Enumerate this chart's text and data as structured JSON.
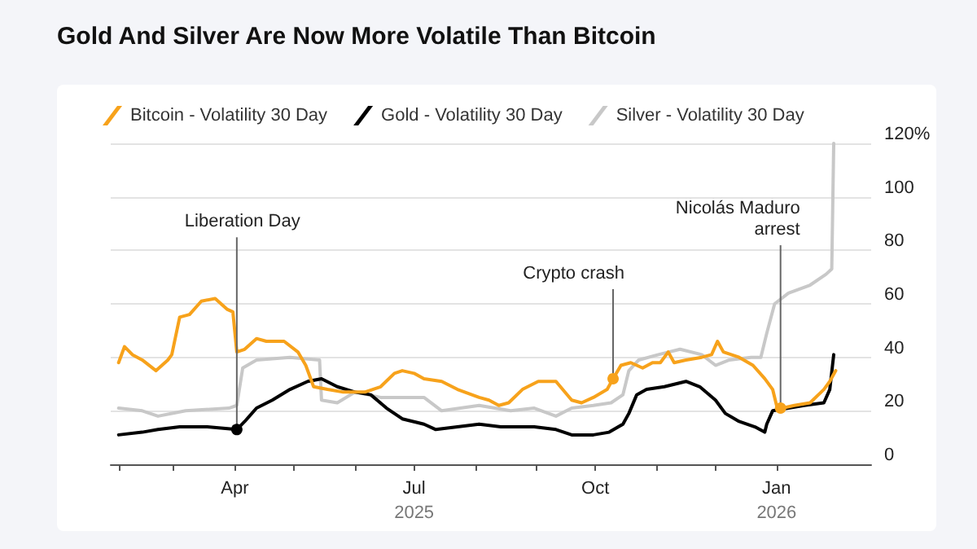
{
  "chart_data": {
    "type": "line",
    "title": "Gold And Silver Are Now More Volatile Than Bitcoin",
    "xlim": [
      "2025-01-28",
      "2026-02-18"
    ],
    "xticks": [
      {
        "value": "2025-02-01",
        "label": null
      },
      {
        "value": "2025-03-01",
        "label": null
      },
      {
        "value": "2025-04-01",
        "label": "Apr"
      },
      {
        "value": "2025-05-01",
        "label": null
      },
      {
        "value": "2025-06-01",
        "label": null
      },
      {
        "value": "2025-07-01",
        "label": "Jul\n2025"
      },
      {
        "value": "2025-08-01",
        "label": null
      },
      {
        "value": "2025-09-01",
        "label": null
      },
      {
        "value": "2025-10-01",
        "label": "Oct"
      },
      {
        "value": "2025-11-01",
        "label": null
      },
      {
        "value": "2025-12-01",
        "label": null
      },
      {
        "value": "2026-01-01",
        "label": "Jan\n2026"
      }
    ],
    "ylim": [
      0,
      120
    ],
    "yticks": [
      0,
      20,
      40,
      60,
      80,
      100,
      {
        "value": 120,
        "label": "120%"
      }
    ],
    "grid": "y",
    "legend": "top left",
    "marker": "none",
    "line_style": "solid",
    "series": [
      {
        "name": "Bitcoin - Volatility 30 Day",
        "color": "#f7a21b",
        "x": [
          "2025-02-01",
          "2025-02-04",
          "2025-02-08",
          "2025-02-13",
          "2025-02-20",
          "2025-02-26",
          "2025-02-28",
          "2025-03-04",
          "2025-03-09",
          "2025-03-15",
          "2025-03-22",
          "2025-03-28",
          "2025-03-31",
          "2025-04-02",
          "2025-04-06",
          "2025-04-12",
          "2025-04-17",
          "2025-04-26",
          "2025-05-03",
          "2025-05-07",
          "2025-05-11",
          "2025-05-18",
          "2025-05-26",
          "2025-06-06",
          "2025-06-14",
          "2025-06-21",
          "2025-06-25",
          "2025-07-01",
          "2025-07-06",
          "2025-07-15",
          "2025-07-23",
          "2025-08-03",
          "2025-08-08",
          "2025-08-13",
          "2025-08-18",
          "2025-08-25",
          "2025-09-02",
          "2025-09-11",
          "2025-09-19",
          "2025-09-24",
          "2025-09-30",
          "2025-10-07",
          "2025-10-10",
          "2025-10-14",
          "2025-10-19",
          "2025-10-25",
          "2025-10-30",
          "2025-11-03",
          "2025-11-07",
          "2025-11-10",
          "2025-11-16",
          "2025-11-24",
          "2025-11-29",
          "2025-12-02",
          "2025-12-05",
          "2025-12-13",
          "2025-12-20",
          "2025-12-26",
          "2025-12-30",
          "2026-01-01",
          "2026-01-04",
          "2026-01-10",
          "2026-01-18",
          "2026-01-25",
          "2026-01-28",
          "2026-01-31"
        ],
        "values": [
          38,
          44,
          41,
          39,
          35,
          39,
          41,
          55,
          56,
          61,
          62,
          58,
          57,
          42,
          43,
          47,
          46,
          46,
          42,
          37,
          29,
          28,
          27,
          27,
          29,
          34,
          35,
          34,
          32,
          31,
          28,
          25,
          24,
          22,
          23,
          28,
          31,
          31,
          24,
          23,
          25,
          28,
          32,
          37,
          38,
          36,
          38,
          38,
          42,
          38,
          39,
          40,
          41,
          46,
          42,
          40,
          37,
          32,
          28,
          22,
          21,
          22,
          23,
          28,
          31,
          35
        ]
      },
      {
        "name": "Gold - Volatility 30 Day",
        "color": "#000000",
        "x": [
          "2025-02-01",
          "2025-02-13",
          "2025-02-21",
          "2025-03-04",
          "2025-03-18",
          "2025-04-02",
          "2025-04-06",
          "2025-04-12",
          "2025-04-20",
          "2025-04-29",
          "2025-05-08",
          "2025-05-15",
          "2025-05-23",
          "2025-06-01",
          "2025-06-09",
          "2025-06-17",
          "2025-06-25",
          "2025-07-06",
          "2025-07-12",
          "2025-07-23",
          "2025-08-03",
          "2025-08-14",
          "2025-08-31",
          "2025-09-11",
          "2025-09-19",
          "2025-09-30",
          "2025-10-08",
          "2025-10-15",
          "2025-10-18",
          "2025-10-22",
          "2025-10-27",
          "2025-11-05",
          "2025-11-16",
          "2025-11-23",
          "2025-12-01",
          "2025-12-06",
          "2025-12-13",
          "2025-12-21",
          "2025-12-26",
          "2025-12-27",
          "2025-12-30",
          "2026-01-07",
          "2026-01-15",
          "2026-01-25",
          "2026-01-28",
          "2026-01-30"
        ],
        "values": [
          11,
          12,
          13,
          14,
          14,
          13,
          16,
          21,
          24,
          28,
          31,
          32,
          29,
          27,
          26,
          21,
          17,
          15,
          13,
          14,
          15,
          14,
          14,
          13,
          11,
          11,
          12,
          15,
          19,
          26,
          28,
          29,
          31,
          29,
          24,
          19,
          16,
          14,
          12,
          15,
          20,
          21,
          22,
          23,
          28,
          41
        ]
      },
      {
        "name": "Silver - Volatility 30 Day",
        "color": "#c8c8c8",
        "x": [
          "2025-02-01",
          "2025-02-13",
          "2025-02-21",
          "2025-03-07",
          "2025-03-29",
          "2025-04-02",
          "2025-04-05",
          "2025-04-12",
          "2025-04-29",
          "2025-05-14",
          "2025-05-15",
          "2025-05-23",
          "2025-06-01",
          "2025-06-14",
          "2025-07-06",
          "2025-07-15",
          "2025-08-03",
          "2025-08-19",
          "2025-08-31",
          "2025-09-11",
          "2025-09-19",
          "2025-09-30",
          "2025-10-09",
          "2025-10-15",
          "2025-10-18",
          "2025-10-23",
          "2025-11-02",
          "2025-11-13",
          "2025-11-24",
          "2025-12-01",
          "2025-12-08",
          "2025-12-19",
          "2025-12-24",
          "2025-12-27",
          "2025-12-31",
          "2026-01-07",
          "2026-01-18",
          "2026-01-26",
          "2026-01-29",
          "2026-01-30"
        ],
        "values": [
          21,
          20,
          18,
          20,
          21,
          22,
          36,
          39,
          40,
          39,
          24,
          23,
          27,
          25,
          25,
          20,
          22,
          20,
          21,
          18,
          21,
          22,
          23,
          26,
          35,
          39,
          41,
          43,
          41,
          37,
          39,
          40,
          40,
          49,
          60,
          64,
          67,
          71,
          73,
          120
        ]
      }
    ],
    "annotations": [
      {
        "text": "Liberation Day",
        "x": "2025-04-02",
        "y": 13
      },
      {
        "text": "Crypto crash",
        "x": "2025-10-10",
        "y": 32
      },
      {
        "text": "Nicolás Maduro\narrest",
        "x": "2026-01-03",
        "y": 21
      }
    ]
  }
}
